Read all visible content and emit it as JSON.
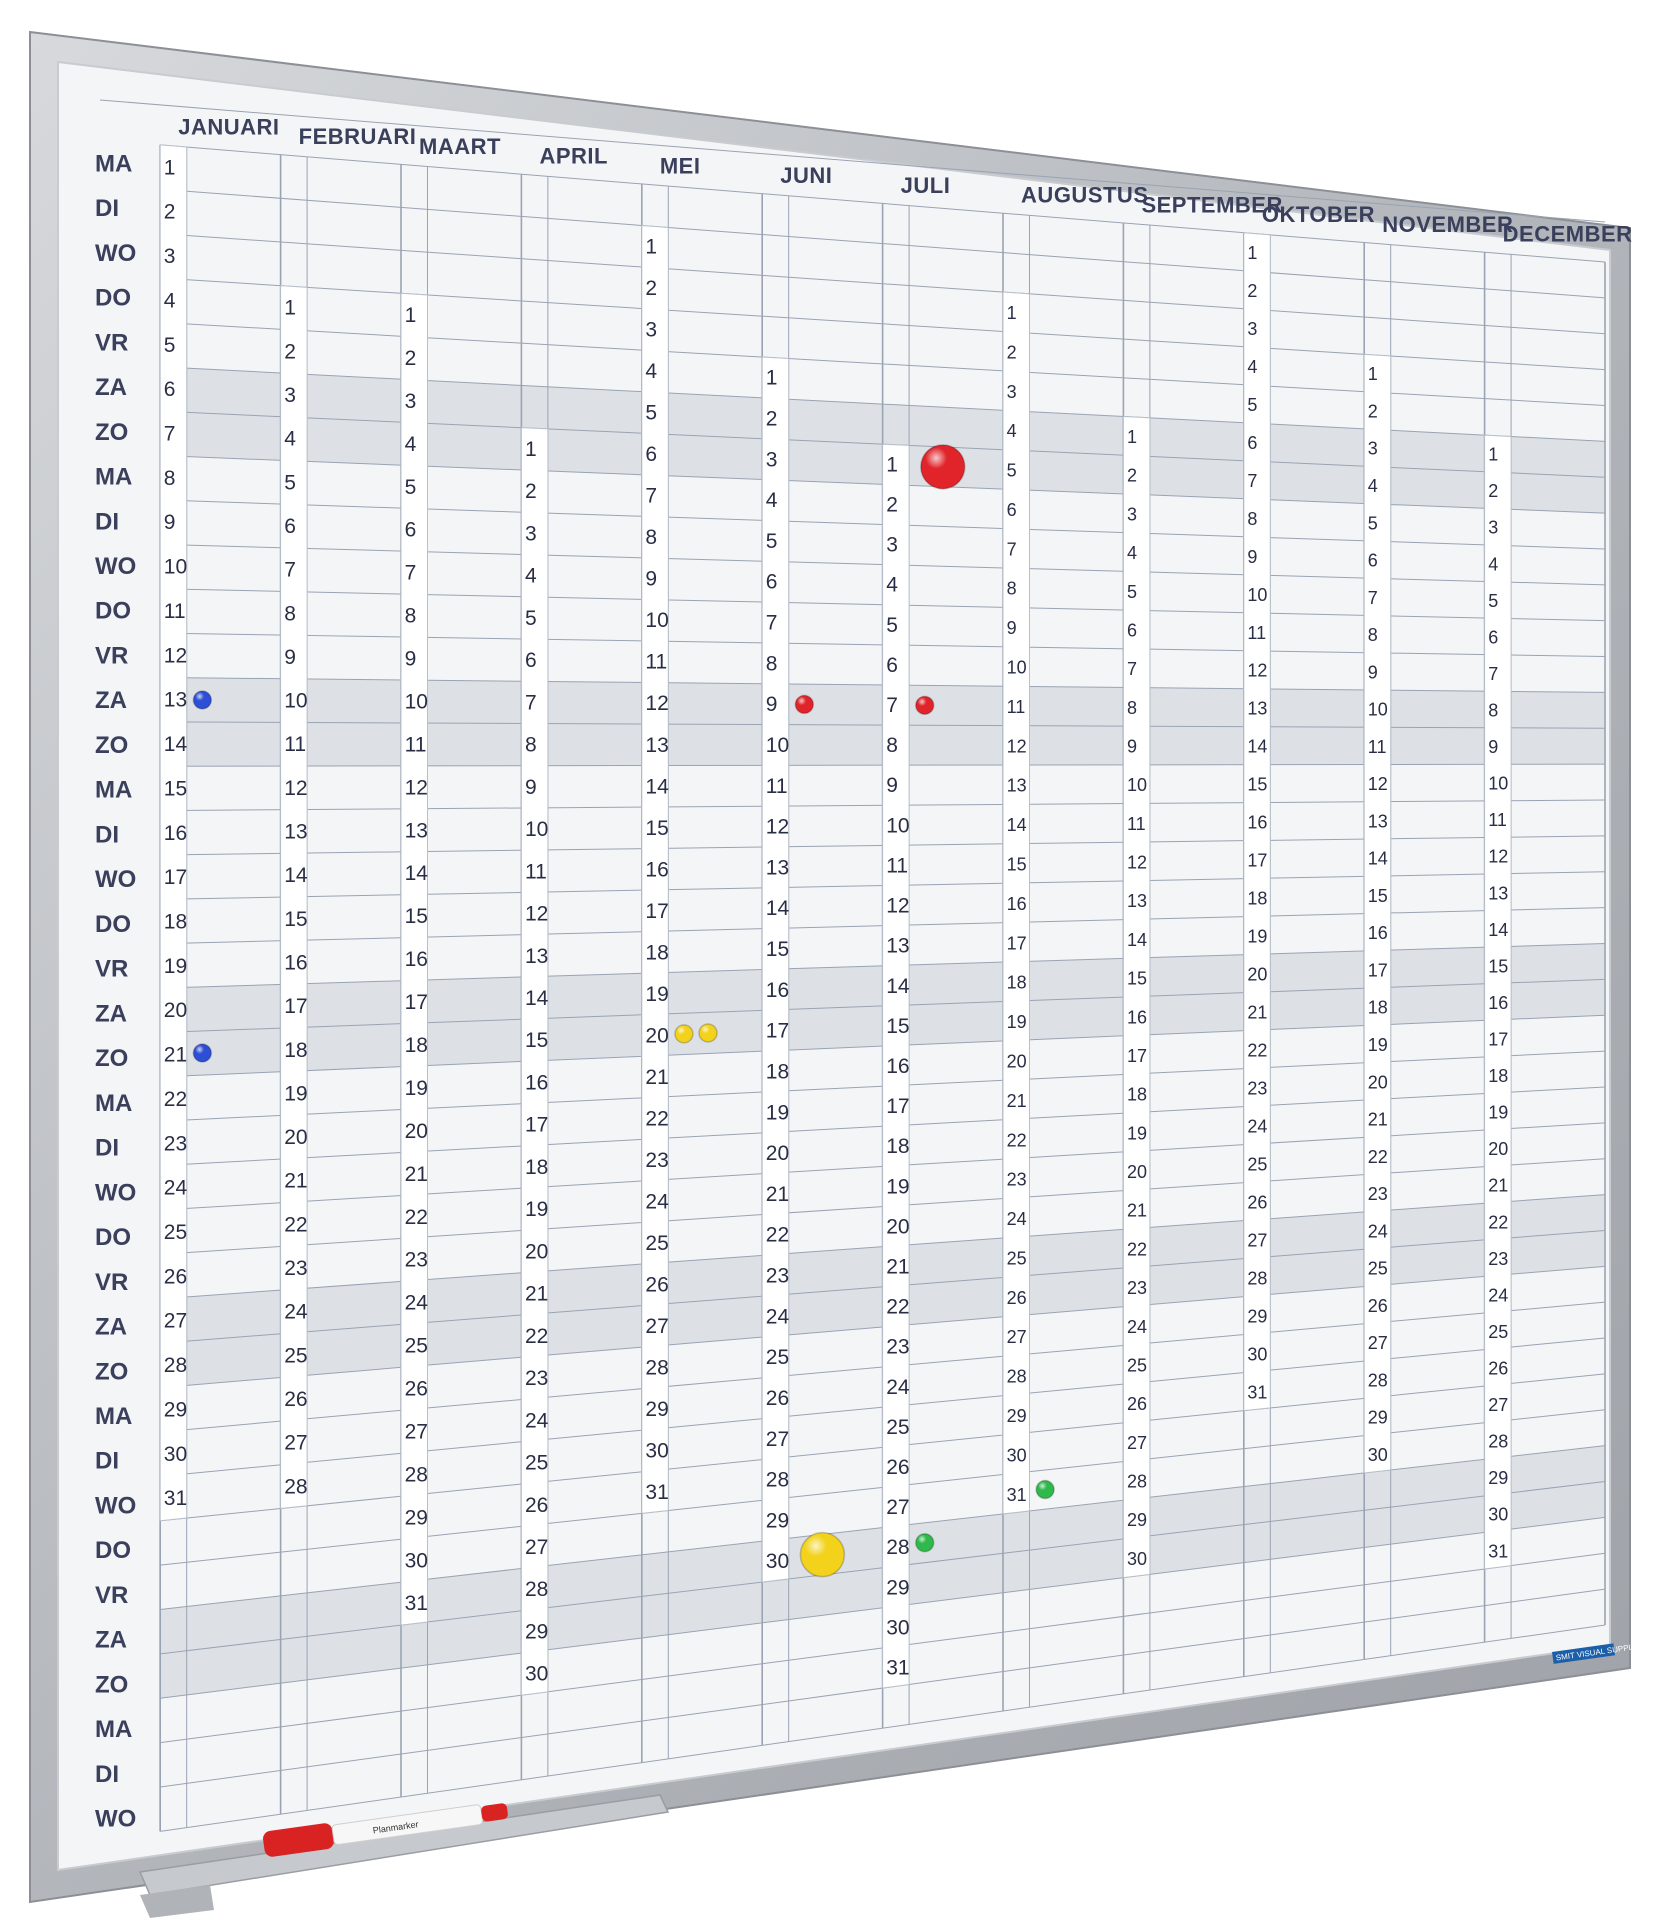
{
  "board": {
    "brand_text": "SMIT VISUAL SUPPLIES",
    "marker_text": "Planmarker",
    "colors": {
      "frame": "#b9bcc0",
      "surface": "#f4f5f6",
      "grid": "#9aa3b3",
      "weekend_band": "#dde1e6",
      "ink": "#3a3f5c"
    }
  },
  "months": [
    {
      "name": "JANUARI",
      "days": 31,
      "start_row": 1
    },
    {
      "name": "FEBRUARI",
      "days": 28,
      "start_row": 4
    },
    {
      "name": "MAART",
      "days": 31,
      "start_row": 4
    },
    {
      "name": "APRIL",
      "days": 30,
      "start_row": 7
    },
    {
      "name": "MEI",
      "days": 31,
      "start_row": 2
    },
    {
      "name": "JUNI",
      "days": 30,
      "start_row": 5
    },
    {
      "name": "JULI",
      "days": 31,
      "start_row": 7
    },
    {
      "name": "AUGUSTUS",
      "days": 31,
      "start_row": 3
    },
    {
      "name": "SEPTEMBER",
      "days": 30,
      "start_row": 6
    },
    {
      "name": "OKTOBER",
      "days": 31,
      "start_row": 1
    },
    {
      "name": "NOVEMBER",
      "days": 30,
      "start_row": 4
    },
    {
      "name": "DECEMBER",
      "days": 31,
      "start_row": 6
    }
  ],
  "weekdays": [
    "MA",
    "DI",
    "WO",
    "DO",
    "VR",
    "ZA",
    "ZO",
    "MA",
    "DI",
    "WO",
    "DO",
    "VR",
    "ZA",
    "ZO",
    "MA",
    "DI",
    "WO",
    "DO",
    "VR",
    "ZA",
    "ZO",
    "MA",
    "DI",
    "WO",
    "DO",
    "VR",
    "ZA",
    "ZO",
    "MA",
    "DI",
    "WO",
    "DO",
    "VR",
    "ZA",
    "ZO",
    "MA",
    "DI",
    "WO"
  ],
  "magnets": [
    {
      "color": "#2d4fd6",
      "month": 0,
      "day": 13,
      "size": "small"
    },
    {
      "color": "#2d4fd6",
      "month": 0,
      "day": 21,
      "size": "small"
    },
    {
      "color": "#e0242a",
      "month": 5,
      "day": 9,
      "size": "small"
    },
    {
      "color": "#e0242a",
      "month": 6,
      "day": 7,
      "size": "small"
    },
    {
      "color": "#e0242a",
      "month": 6,
      "day": 1,
      "size": "large"
    },
    {
      "color": "#f2d21a",
      "month": 4,
      "day": 20,
      "size": "small"
    },
    {
      "color": "#f2d21a",
      "month": 4,
      "day": 20,
      "size": "small2"
    },
    {
      "color": "#f2d21a",
      "month": 5,
      "day": 30,
      "size": "large"
    },
    {
      "color": "#2fb84b",
      "month": 7,
      "day": 31,
      "size": "small"
    },
    {
      "color": "#2fb84b",
      "month": 6,
      "day": 28,
      "size": "small"
    }
  ]
}
